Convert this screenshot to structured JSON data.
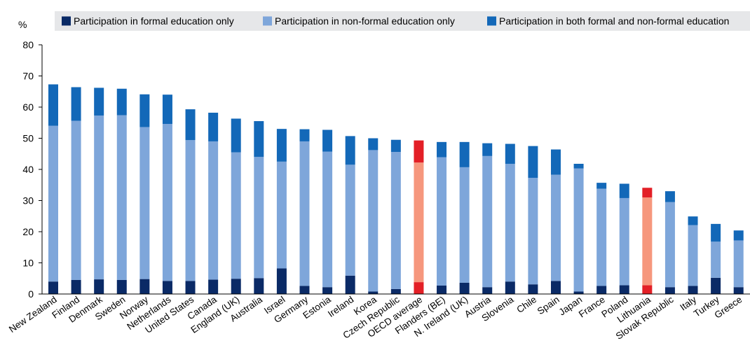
{
  "chart_data": {
    "type": "bar",
    "stacked": true,
    "ylabel": "%",
    "ylim": [
      0,
      80
    ],
    "yticks": [
      0,
      10,
      20,
      30,
      40,
      50,
      60,
      70,
      80
    ],
    "legend_position": "top",
    "categories": [
      "New Zealand",
      "Finland",
      "Denmark",
      "Sweden",
      "Norway",
      "Netherlands",
      "United States",
      "Canada",
      "England (UK)",
      "Australia",
      "Israel",
      "Germany",
      "Estonia",
      "Ireland",
      "Korea",
      "Czech Republic",
      "OECD average",
      "Flanders (BE)",
      "N. Ireland (UK)",
      "Austria",
      "Slovenia",
      "Chile",
      "Spain",
      "Japan",
      "France",
      "Poland",
      "Lithuania",
      "Slovak Republic",
      "Italy",
      "Turkey",
      "Greece"
    ],
    "highlighted": [
      "OECD average",
      "Lithuania"
    ],
    "series": [
      {
        "name": "Participation in formal education only",
        "color": "#0a2a66",
        "highlight_color": "#e31f26",
        "values": [
          4.0,
          4.5,
          4.7,
          4.5,
          4.8,
          4.2,
          4.2,
          4.6,
          4.9,
          5.1,
          8.2,
          2.6,
          2.2,
          5.9,
          0.8,
          1.6,
          3.8,
          2.7,
          3.6,
          2.2,
          4.0,
          3.1,
          4.2,
          0.8,
          2.6,
          2.8,
          2.8,
          2.2,
          2.6,
          5.2,
          2.2
        ]
      },
      {
        "name": "Participation in non-formal education only",
        "color": "#7ea6da",
        "highlight_color": "#f6977d",
        "values": [
          50.0,
          51.1,
          52.6,
          52.9,
          48.8,
          50.4,
          45.2,
          44.4,
          40.6,
          38.9,
          34.3,
          46.4,
          43.5,
          35.6,
          45.4,
          44.0,
          38.4,
          41.2,
          37.1,
          42.1,
          37.8,
          34.2,
          34.1,
          39.5,
          31.2,
          28.0,
          28.2,
          27.3,
          19.5,
          11.6,
          15.0
        ]
      },
      {
        "name": "Participation in both formal and non-formal education",
        "color": "#1368b8",
        "highlight_color": "#e31f26",
        "values": [
          13.3,
          10.8,
          8.9,
          8.5,
          10.5,
          9.4,
          9.9,
          9.2,
          10.8,
          11.5,
          10.5,
          3.9,
          7.0,
          9.2,
          3.8,
          3.9,
          7.1,
          4.9,
          8.1,
          4.1,
          6.4,
          10.2,
          8.1,
          1.5,
          1.9,
          4.6,
          3.1,
          3.5,
          2.8,
          5.7,
          3.2
        ]
      }
    ]
  }
}
